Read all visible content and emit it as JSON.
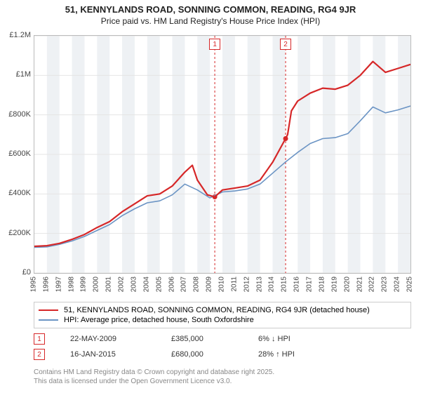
{
  "titles": {
    "main": "51, KENNYLANDS ROAD, SONNING COMMON, READING, RG4 9JR",
    "sub": "Price paid vs. HM Land Registry's House Price Index (HPI)"
  },
  "chart": {
    "type": "line",
    "plot_bg": "#ffffff",
    "banded_bg_color": "#eef1f4",
    "grid_color": "#e5e5e5",
    "border_color": "#bbbbbb",
    "x": {
      "min": 1995,
      "max": 2025,
      "ticks": [
        1995,
        1996,
        1997,
        1998,
        1999,
        2000,
        2001,
        2002,
        2003,
        2004,
        2005,
        2006,
        2007,
        2008,
        2009,
        2010,
        2011,
        2012,
        2013,
        2014,
        2015,
        2016,
        2017,
        2018,
        2019,
        2020,
        2021,
        2022,
        2023,
        2024,
        2025
      ],
      "label_fontsize": 10
    },
    "y": {
      "min": 0,
      "max": 1200000,
      "ticks": [
        0,
        200000,
        400000,
        600000,
        800000,
        1000000,
        1200000
      ],
      "tick_labels": [
        "£0",
        "£200K",
        "£400K",
        "£600K",
        "£800K",
        "£1M",
        "£1.2M"
      ],
      "label_fontsize": 11
    },
    "series": [
      {
        "id": "subject",
        "label": "51, KENNYLANDS ROAD, SONNING COMMON, READING, RG4 9JR (detached house)",
        "color": "#d62728",
        "width": 2.2,
        "data": [
          [
            1995,
            135000
          ],
          [
            1996,
            138000
          ],
          [
            1997,
            150000
          ],
          [
            1998,
            170000
          ],
          [
            1999,
            195000
          ],
          [
            2000,
            230000
          ],
          [
            2001,
            260000
          ],
          [
            2002,
            310000
          ],
          [
            2003,
            350000
          ],
          [
            2004,
            390000
          ],
          [
            2005,
            400000
          ],
          [
            2006,
            440000
          ],
          [
            2007,
            510000
          ],
          [
            2007.6,
            545000
          ],
          [
            2008,
            470000
          ],
          [
            2008.8,
            395000
          ],
          [
            2009.39,
            385000
          ],
          [
            2010,
            420000
          ],
          [
            2011,
            430000
          ],
          [
            2012,
            440000
          ],
          [
            2013,
            470000
          ],
          [
            2014,
            560000
          ],
          [
            2015.04,
            680000
          ],
          [
            2015.2,
            700000
          ],
          [
            2015.5,
            820000
          ],
          [
            2016,
            870000
          ],
          [
            2017,
            910000
          ],
          [
            2018,
            935000
          ],
          [
            2019,
            930000
          ],
          [
            2020,
            950000
          ],
          [
            2021,
            1000000
          ],
          [
            2022,
            1070000
          ],
          [
            2023,
            1015000
          ],
          [
            2024,
            1035000
          ],
          [
            2025,
            1055000
          ]
        ]
      },
      {
        "id": "hpi",
        "label": "HPI: Average price, detached house, South Oxfordshire",
        "color": "#6b94c4",
        "width": 1.6,
        "data": [
          [
            1995,
            130000
          ],
          [
            1996,
            132000
          ],
          [
            1997,
            145000
          ],
          [
            1998,
            162000
          ],
          [
            1999,
            185000
          ],
          [
            2000,
            215000
          ],
          [
            2001,
            245000
          ],
          [
            2002,
            290000
          ],
          [
            2003,
            325000
          ],
          [
            2004,
            355000
          ],
          [
            2005,
            365000
          ],
          [
            2006,
            395000
          ],
          [
            2007,
            450000
          ],
          [
            2008,
            420000
          ],
          [
            2009,
            380000
          ],
          [
            2010,
            410000
          ],
          [
            2011,
            415000
          ],
          [
            2012,
            425000
          ],
          [
            2013,
            450000
          ],
          [
            2014,
            505000
          ],
          [
            2015,
            560000
          ],
          [
            2016,
            610000
          ],
          [
            2017,
            655000
          ],
          [
            2018,
            680000
          ],
          [
            2019,
            685000
          ],
          [
            2020,
            705000
          ],
          [
            2021,
            770000
          ],
          [
            2022,
            840000
          ],
          [
            2023,
            810000
          ],
          [
            2024,
            825000
          ],
          [
            2025,
            845000
          ]
        ]
      }
    ],
    "transactions": [
      {
        "n": "1",
        "date_text": "22-MAY-2009",
        "price_text": "£385,000",
        "delta_text": "6% ↓ HPI",
        "year": 2009.39,
        "price": 385000,
        "marker_color": "#d62728"
      },
      {
        "n": "2",
        "date_text": "16-JAN-2015",
        "price_text": "£680,000",
        "delta_text": "28% ↑ HPI",
        "year": 2015.04,
        "price": 680000,
        "marker_color": "#d62728"
      }
    ]
  },
  "legend": {
    "border_color": "#cccccc",
    "fontsize": 11
  },
  "footnote": {
    "line1": "Contains HM Land Registry data © Crown copyright and database right 2025.",
    "line2": "This data is licensed under the Open Government Licence v3.0."
  }
}
